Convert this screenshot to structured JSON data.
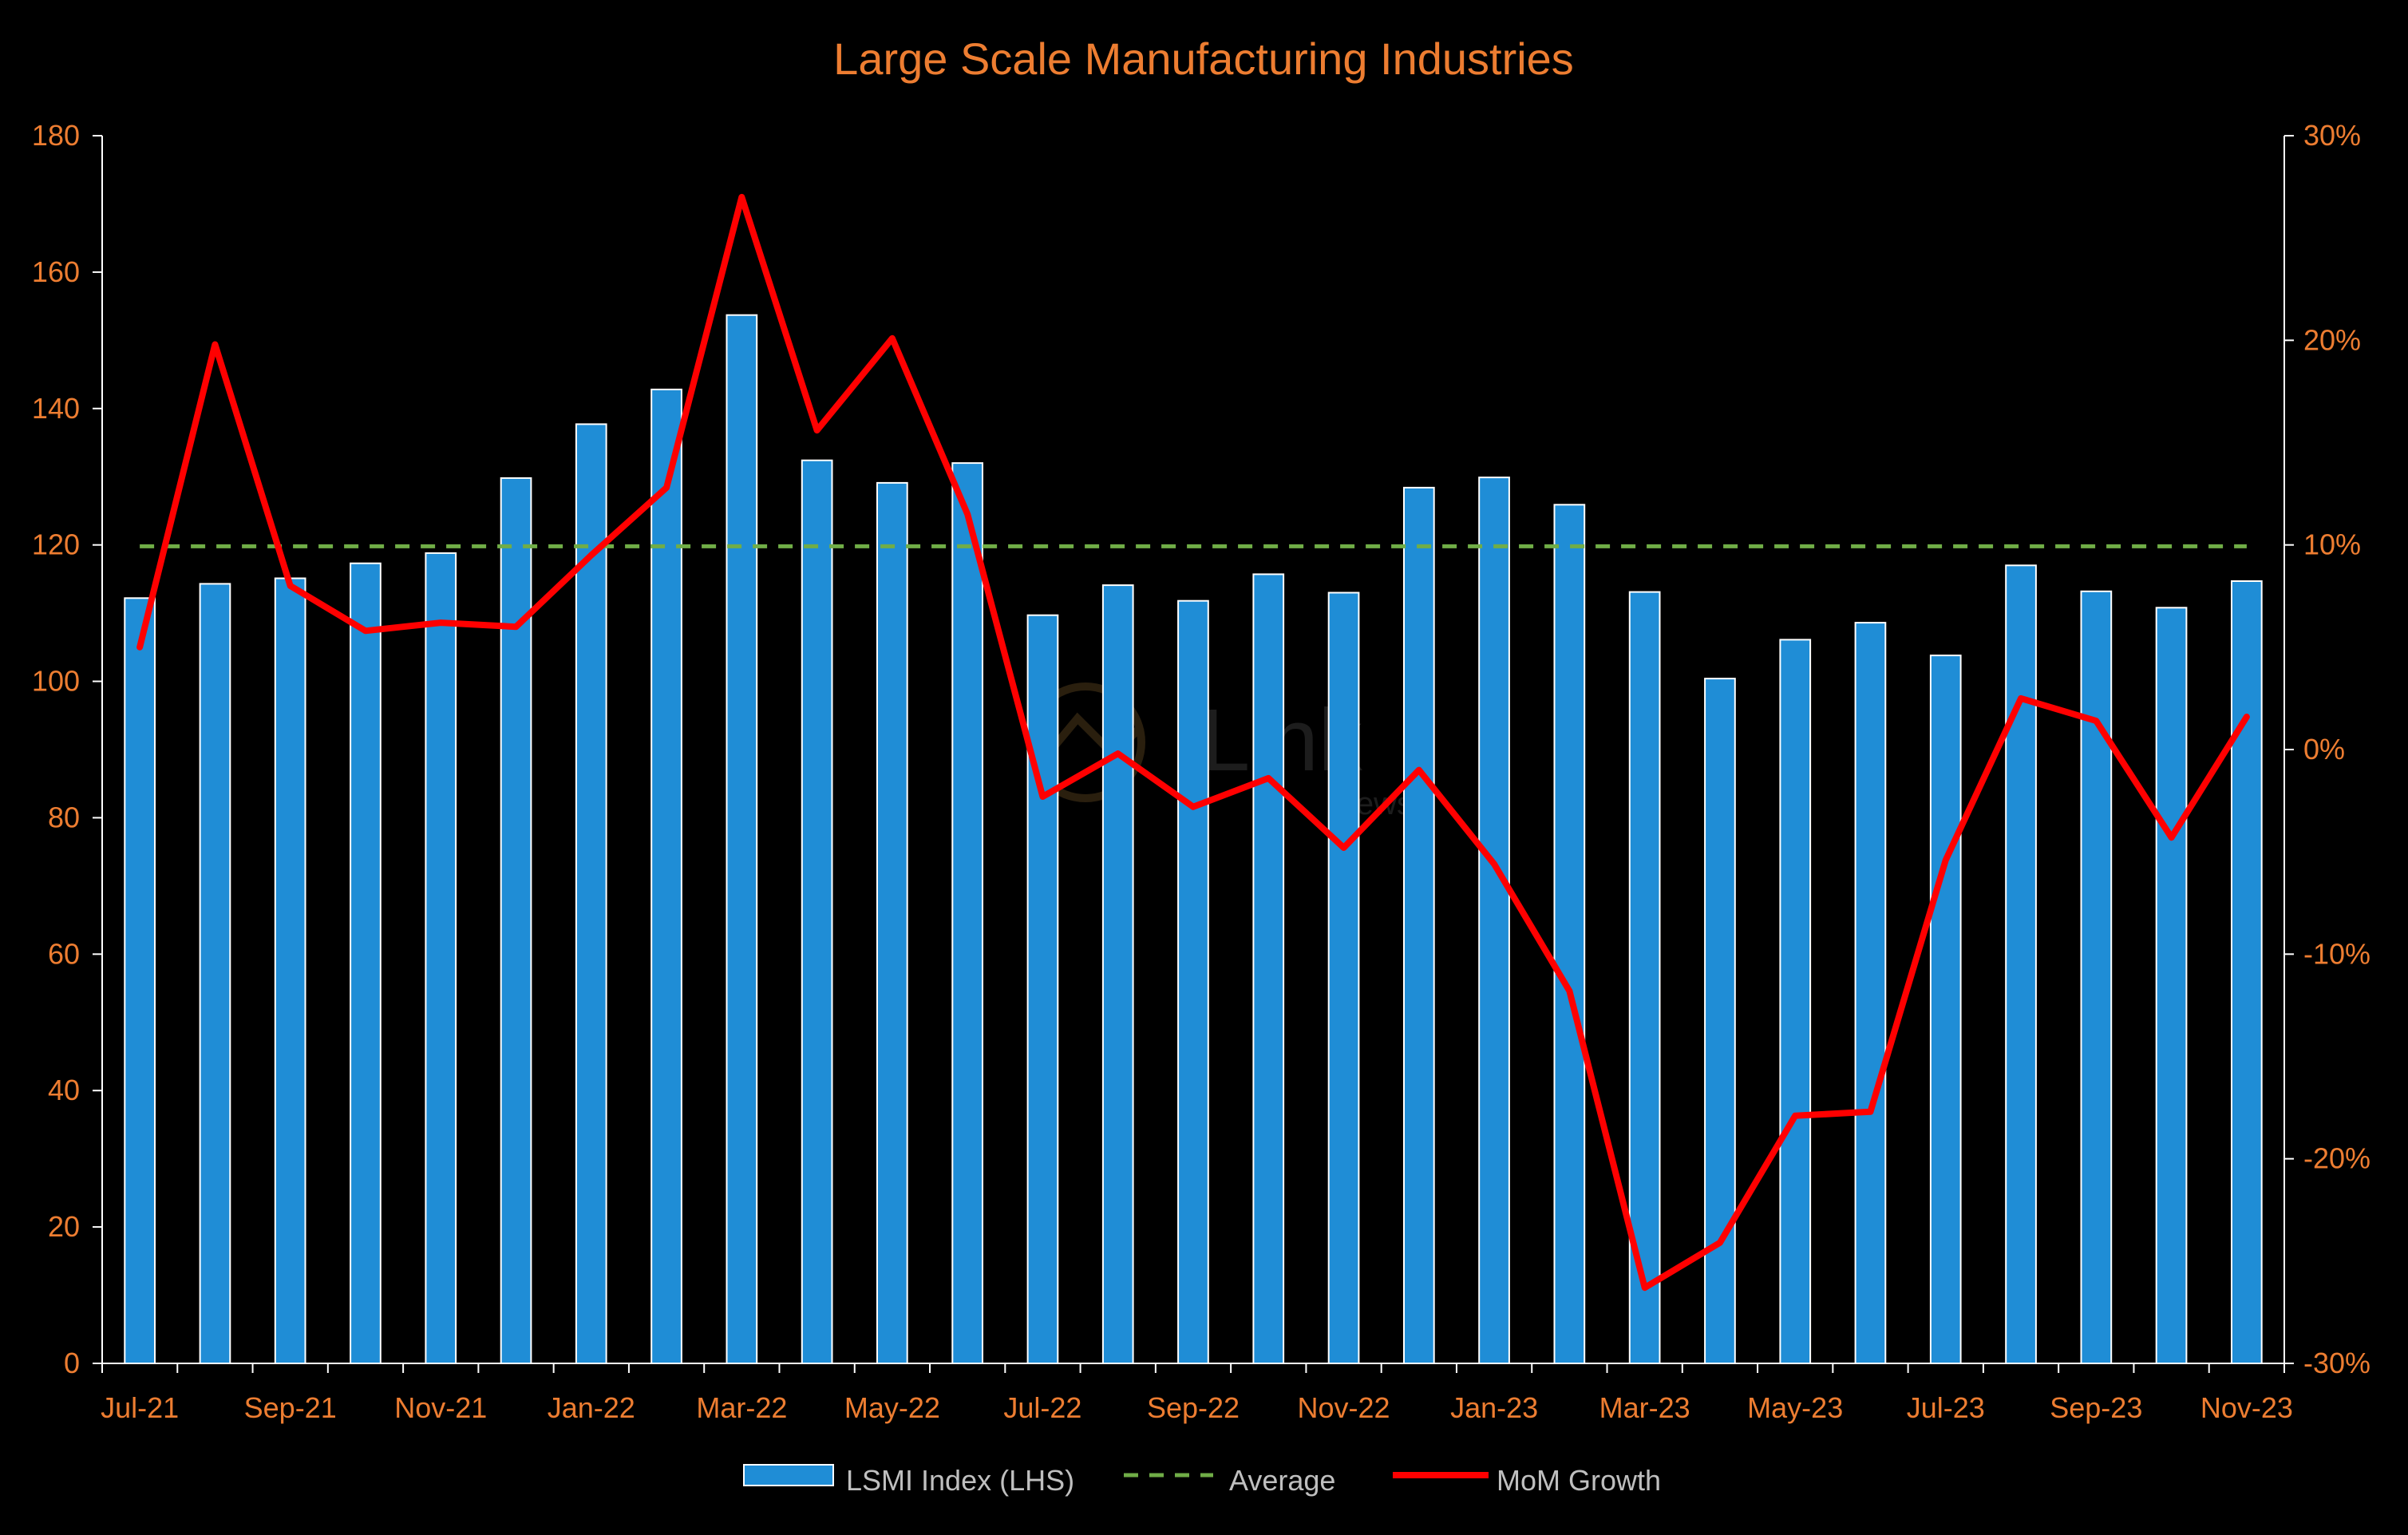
{
  "chart_data": {
    "type": "bar",
    "title": "Large Scale Manufacturing Industries",
    "categories": [
      "Jul-21",
      "Aug-21",
      "Sep-21",
      "Oct-21",
      "Nov-21",
      "Dec-21",
      "Jan-22",
      "Feb-22",
      "Mar-22",
      "Apr-22",
      "May-22",
      "Jun-22",
      "Jul-22",
      "Aug-22",
      "Sep-22",
      "Oct-22",
      "Nov-22",
      "Dec-22",
      "Jan-23",
      "Feb-23",
      "Mar-23",
      "Apr-23",
      "May-23",
      "Jun-23",
      "Jul-23",
      "Aug-23",
      "Sep-23",
      "Oct-23",
      "Nov-23"
    ],
    "x_tick_labels": [
      "Jul-21",
      "Sep-21",
      "Nov-21",
      "Jan-22",
      "Mar-22",
      "May-22",
      "Jul-22",
      "Sep-22",
      "Nov-22",
      "Jan-23",
      "Mar-23",
      "May-23",
      "Jul-23",
      "Sep-23",
      "Nov-23"
    ],
    "left_axis": {
      "ylim": [
        0,
        180
      ],
      "ticks": [
        0,
        20,
        40,
        60,
        80,
        100,
        120,
        140,
        160,
        180
      ]
    },
    "right_axis": {
      "ylim": [
        -30,
        30
      ],
      "ticks": [
        -30,
        -20,
        -10,
        0,
        10,
        20,
        30
      ],
      "tick_labels": [
        "-30%",
        "-20%",
        "-10%",
        "0%",
        "10%",
        "20%",
        "30%"
      ]
    },
    "series": [
      {
        "name": "LSMI Index (LHS)",
        "type": "bar",
        "axis": "left",
        "values": [
          112.2,
          114.3,
          115.1,
          117.3,
          118.8,
          129.8,
          137.7,
          142.8,
          153.7,
          132.4,
          129.1,
          132.0,
          109.7,
          114.1,
          111.8,
          115.7,
          113.0,
          128.4,
          129.9,
          125.9,
          113.1,
          100.4,
          106.1,
          108.6,
          103.8,
          117.0,
          113.2,
          110.8,
          114.7
        ]
      },
      {
        "name": "Average",
        "type": "line",
        "style": "dashed",
        "axis": "left",
        "values": [
          119.8,
          119.8,
          119.8,
          119.8,
          119.8,
          119.8,
          119.8,
          119.8,
          119.8,
          119.8,
          119.8,
          119.8,
          119.8,
          119.8,
          119.8,
          119.8,
          119.8,
          119.8,
          119.8,
          119.8,
          119.8,
          119.8,
          119.8,
          119.8,
          119.8,
          119.8,
          119.8,
          119.8,
          119.8
        ]
      },
      {
        "name": "MoM Growth",
        "type": "line",
        "axis": "right",
        "values": [
          5.0,
          19.8,
          8.0,
          5.8,
          6.2,
          6.0,
          9.5,
          12.8,
          27.0,
          15.6,
          20.1,
          11.5,
          -2.3,
          -0.2,
          -2.8,
          -1.4,
          -4.8,
          -1.0,
          -5.6,
          -11.8,
          -26.3,
          -24.1,
          -17.9,
          -17.7,
          -5.4,
          2.5,
          1.4,
          -4.3,
          1.6
        ]
      }
    ],
    "grid": false,
    "legend_position": "bottom",
    "colors": {
      "background": "#000000",
      "bar_fill": "#1f8dd6",
      "bar_stroke": "#ffffff",
      "average_line": "#70ad47",
      "growth_line": "#ff0000",
      "title": "#ed7d31",
      "tick_label": "#ed7d31",
      "axis_line": "#ffffff",
      "legend_text": "#bfbfbf"
    }
  },
  "watermark": {
    "brand": "Link",
    "sub": "News"
  }
}
